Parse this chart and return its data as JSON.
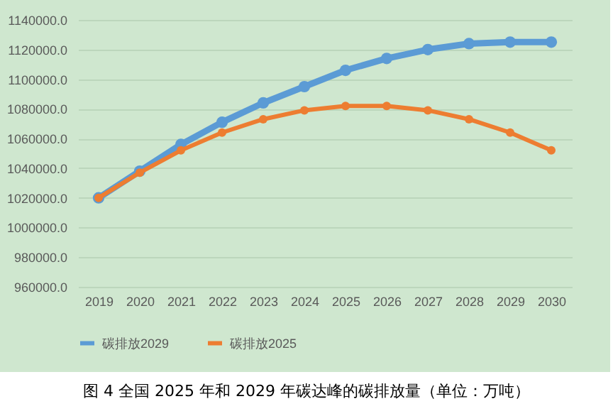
{
  "chart_data": {
    "type": "line",
    "title": "图 4 全国 2025 年和 2029 年碳达峰的碳排放量（单位：万吨）",
    "categories": [
      "2019",
      "2020",
      "2021",
      "2022",
      "2023",
      "2024",
      "2025",
      "2026",
      "2027",
      "2028",
      "2029",
      "2030"
    ],
    "series": [
      {
        "name": "碳排放2029",
        "color": "#5b9bd5",
        "values": [
          1020000,
          1038000,
          1056000,
          1071000,
          1084000,
          1095000,
          1106000,
          1114000,
          1120000,
          1124000,
          1125000,
          1125000
        ]
      },
      {
        "name": "碳排放2025",
        "color": "#ed7d31",
        "values": [
          1020000,
          1037000,
          1052000,
          1064000,
          1073000,
          1079000,
          1082000,
          1082000,
          1079000,
          1073000,
          1064000,
          1052000
        ]
      }
    ],
    "ylim": [
      960000,
      1140000
    ],
    "yticks": [
      {
        "value": 960000,
        "label": "960000.0"
      },
      {
        "value": 980000,
        "label": "980000.0"
      },
      {
        "value": 1000000,
        "label": "1000000.0"
      },
      {
        "value": 1020000,
        "label": "1020000.0"
      },
      {
        "value": 1040000,
        "label": "1040000.0"
      },
      {
        "value": 1060000,
        "label": "1060000.0"
      },
      {
        "value": 1080000,
        "label": "1080000.0"
      },
      {
        "value": 1100000,
        "label": "1100000.0"
      },
      {
        "value": 1120000,
        "label": "1120000.0"
      },
      {
        "value": 1140000,
        "label": "1140000.0"
      }
    ],
    "grid": "y",
    "legend": "bottom",
    "marker": "circle",
    "line_style": "solid"
  }
}
